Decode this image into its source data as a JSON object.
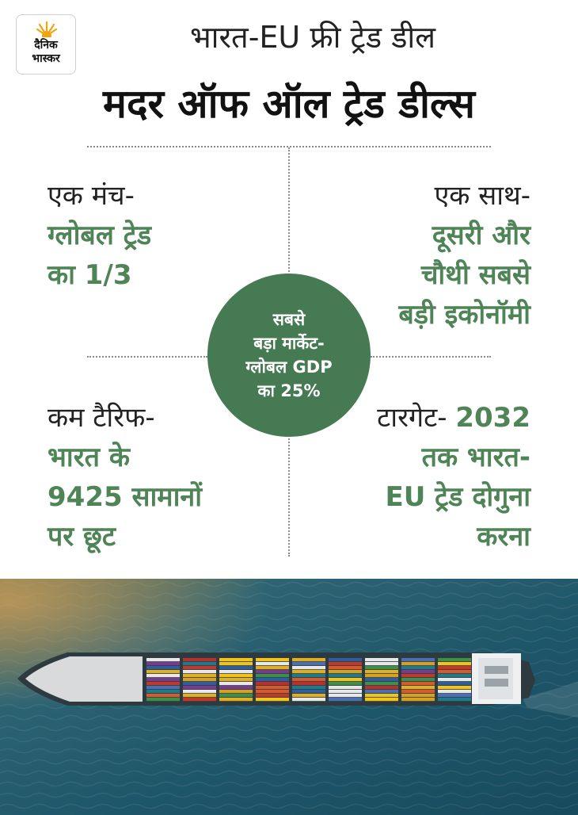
{
  "logo": {
    "line1": "दैनिक",
    "line2": "भास्कर",
    "icon": "sun-icon"
  },
  "header": {
    "subtitle": "भारत-EU फ्री ट्रेड डील",
    "title": "मदर ऑफ ऑल ट्रेड डील्स"
  },
  "quadrants": {
    "top_left": {
      "label": "एक मंच-",
      "lines": [
        "ग्लोबल ट्रेड",
        "का 1/3"
      ]
    },
    "top_right": {
      "label": "एक साथ-",
      "lines": [
        "दूसरी और",
        "चौथी सबसे",
        "बड़ी इकोनॉमी"
      ]
    },
    "bottom_left": {
      "label": "कम टैरिफ-",
      "lines": [
        "भारत के",
        "9425 सामानों",
        "पर छूट"
      ]
    },
    "bottom_right": {
      "label": "टारगेट-",
      "first": "2032",
      "lines": [
        "तक भारत-",
        "EU ट्रेड दोगुना",
        "करना"
      ]
    }
  },
  "center": {
    "lines": [
      "सबसे",
      "बड़ा मार्केट-",
      "ग्लोबल GDP",
      "का 25%"
    ]
  },
  "colors": {
    "accent_green": "#4e8456",
    "circle_green": "#467a52",
    "sea": "#1f5a6e"
  },
  "image": {
    "subject": "container-ship-aerial-photo"
  }
}
